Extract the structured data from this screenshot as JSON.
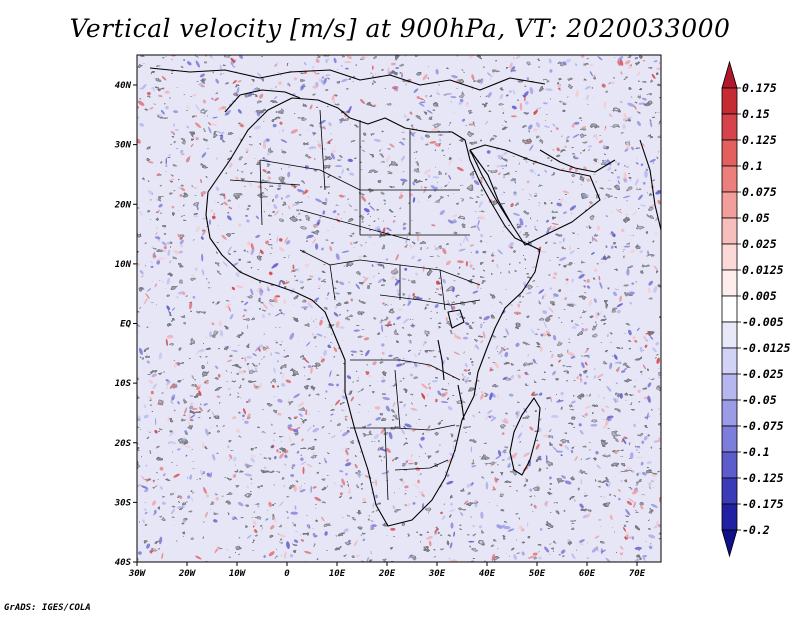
{
  "title": "Vertical velocity [m/s] at 900hPa, VT: 2020033000",
  "footer": "GrADS: IGES/COLA",
  "map": {
    "lat_labels": [
      "40N",
      "30N",
      "20N",
      "10N",
      "EQ",
      "10S",
      "20S",
      "30S",
      "40S"
    ],
    "lon_labels": [
      "30W",
      "20W",
      "10W",
      "0",
      "10E",
      "20E",
      "30E",
      "40E",
      "50E",
      "60E",
      "70E"
    ]
  },
  "colorbar": {
    "labels": [
      "0.175",
      "0.15",
      "0.125",
      "0.1",
      "0.075",
      "0.05",
      "0.025",
      "0.0125",
      "0.005",
      "-0.005",
      "-0.0125",
      "-0.025",
      "-0.05",
      "-0.075",
      "-0.1",
      "-0.125",
      "-0.175",
      "-0.2"
    ],
    "colors": [
      "#b2182b",
      "#c42b33",
      "#d6434a",
      "#e3605e",
      "#ec7f7c",
      "#f29f9b",
      "#f7bfbc",
      "#fad9d7",
      "#fdeeed",
      "#ffffff",
      "#e8e8fb",
      "#d2d2f6",
      "#b7b7ef",
      "#9b9be6",
      "#7d7ddb",
      "#5c5ccc",
      "#3b3bb9",
      "#2020a3",
      "#10108a"
    ]
  }
}
